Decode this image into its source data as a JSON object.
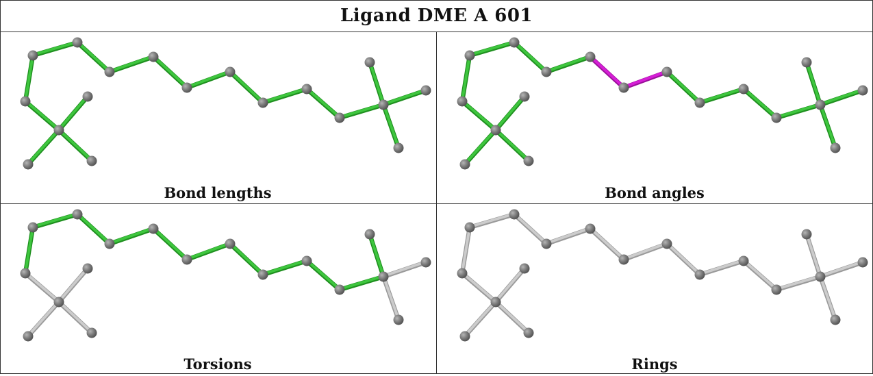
{
  "title": "Ligand DME A 601",
  "colors": {
    "bond_ok": "#3ec63e",
    "bond_ok_dark": "#1f8f1f",
    "bond_outlier": "#d61ed6",
    "bond_outlier_dark": "#9a109a",
    "bond_unassessed": "#cccccc",
    "bond_unassessed_dark": "#9a9a9a",
    "atom": "#7d7d7d"
  },
  "panels": [
    {
      "caption": "Bond lengths",
      "outlier_bonds": [],
      "assessed_bonds": "all"
    },
    {
      "caption": "Bond angles",
      "outlier_bonds": [
        [
          4,
          5
        ],
        [
          5,
          6
        ]
      ],
      "assessed_bonds": "all"
    },
    {
      "caption": "Torsions",
      "outlier_bonds": [],
      "assessed_bonds": [
        [
          0,
          1
        ],
        [
          1,
          2
        ],
        [
          2,
          3
        ],
        [
          3,
          4
        ],
        [
          4,
          5
        ],
        [
          5,
          6
        ],
        [
          6,
          7
        ],
        [
          7,
          8
        ],
        [
          8,
          9
        ],
        [
          9,
          10
        ],
        [
          10,
          11
        ],
        [
          0,
          13
        ]
      ]
    },
    {
      "caption": "Rings",
      "outlier_bonds": [],
      "assessed_bonds": "none"
    }
  ]
}
